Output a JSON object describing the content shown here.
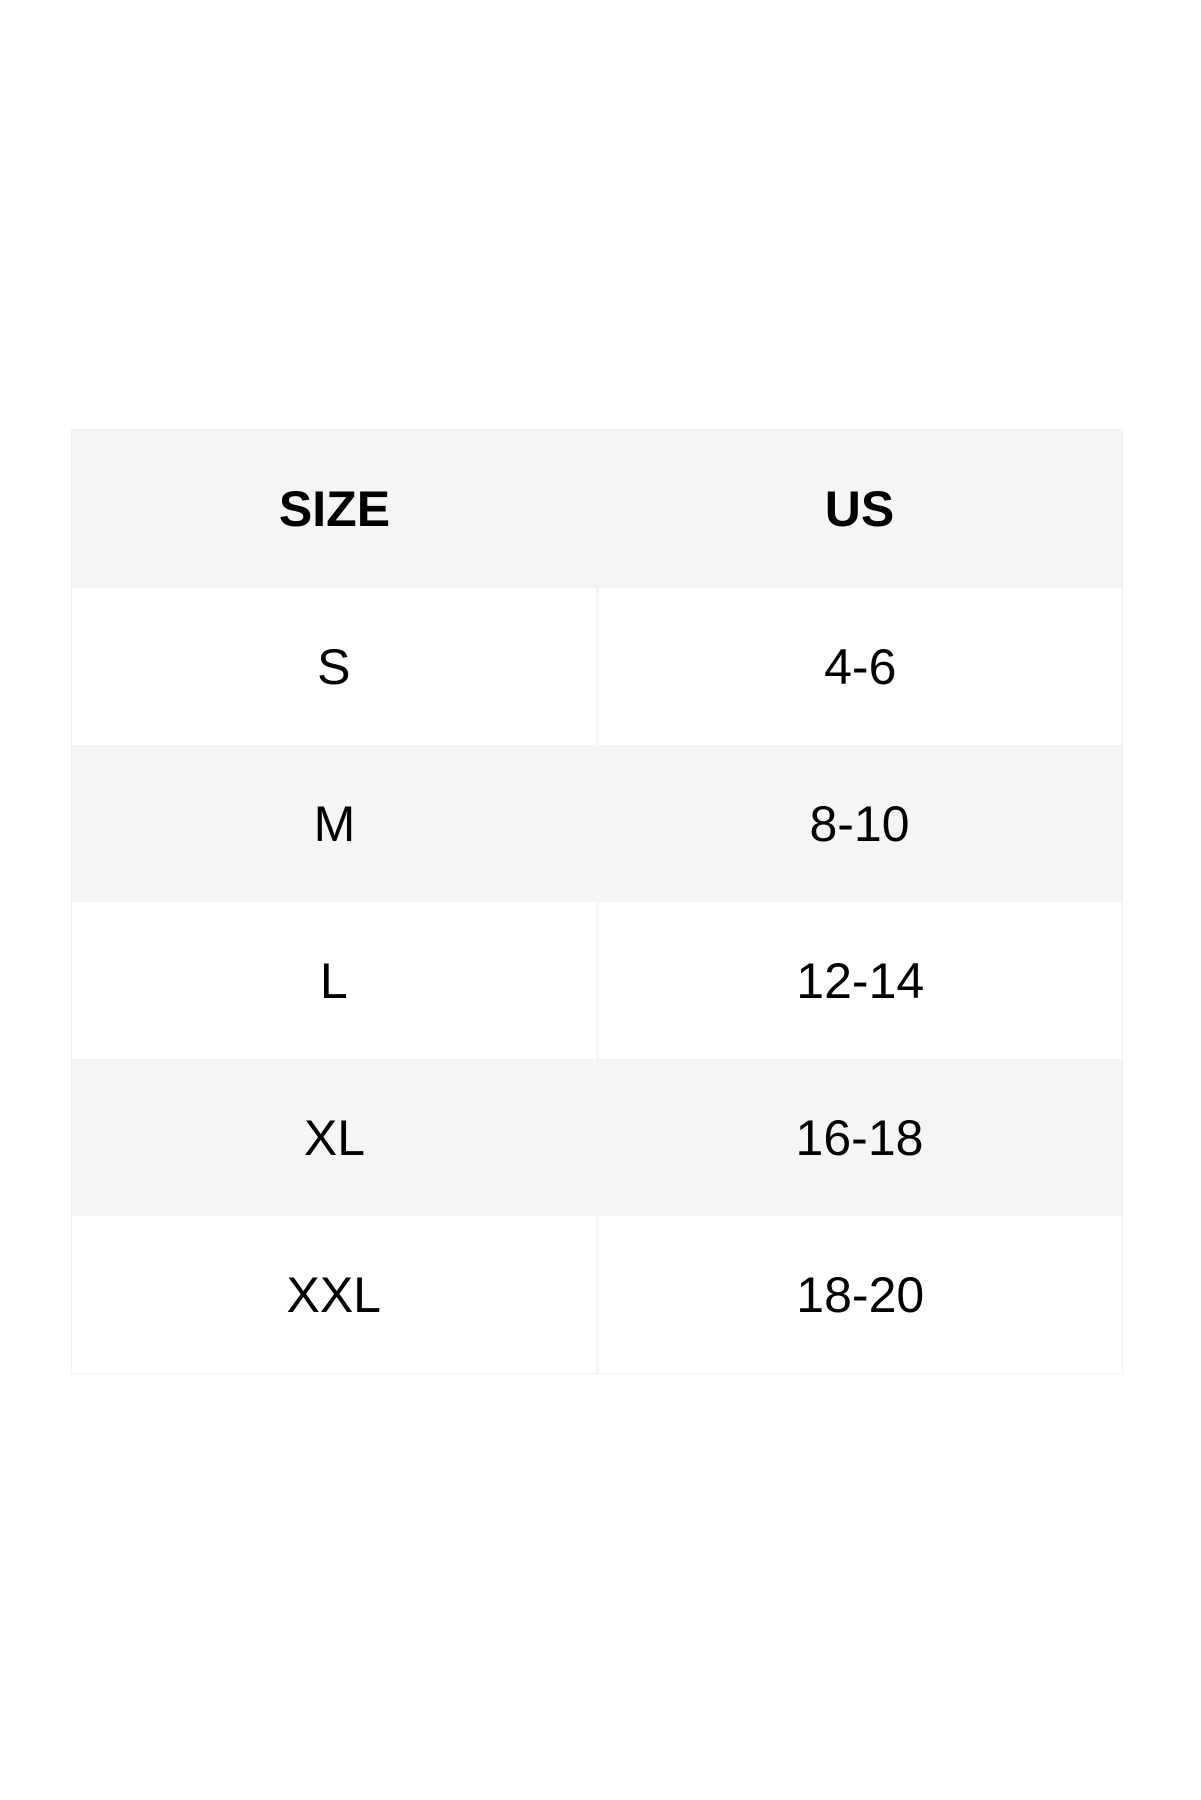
{
  "table": {
    "headers": [
      "SIZE",
      "US"
    ],
    "rows": [
      [
        "S",
        "4-6"
      ],
      [
        "M",
        "8-10"
      ],
      [
        "L",
        "12-14"
      ],
      [
        "XL",
        "16-18"
      ],
      [
        "XXL",
        "18-20"
      ]
    ]
  },
  "colors": {
    "shaded_row": "#f5f5f5",
    "text": "#000000"
  }
}
